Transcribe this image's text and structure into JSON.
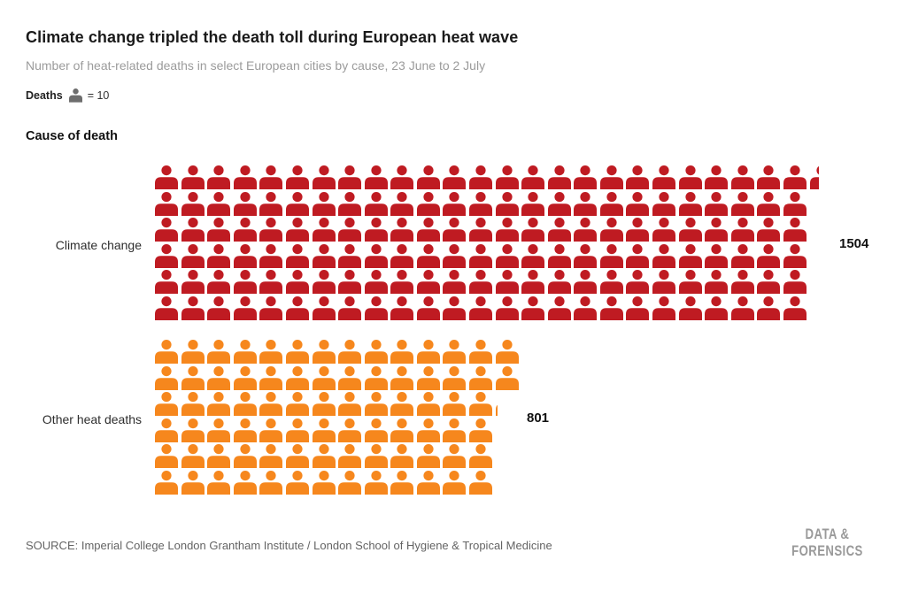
{
  "header": {
    "title": "Climate change tripled the death toll during European heat wave",
    "subtitle": "Number of heat-related deaths in select European cities by cause, 23 June to 2 July"
  },
  "legend": {
    "label": "Deaths",
    "icon": "person-icon",
    "equals_text": "= 10",
    "icon_color": "#6d6d6d"
  },
  "chart_data": {
    "type": "pictogram",
    "title": "Climate change tripled the death toll during European heat wave",
    "subtitle": "Number of heat-related deaths in select European cities by cause, 23 June to 2 July",
    "group_label": "Cause of death",
    "icon_unit": 10,
    "icon_meaning": "1 person icon = 10 deaths",
    "rows_per_category": 6,
    "fill_order": "column-major, partial icon clipped horizontally",
    "legend_position": "top-left",
    "categories": [
      "Climate change",
      "Other heat deaths"
    ],
    "values": [
      1504,
      801
    ],
    "value_labels": [
      "1504",
      "801"
    ],
    "colors": [
      "#bf1b22",
      "#f6871d"
    ]
  },
  "footer": {
    "source": "SOURCE: Imperial College London Grantham Institute / London School of Hygiene & Tropical Medicine",
    "logo_line1": "DATA &",
    "logo_line2": "FORENSICS"
  }
}
